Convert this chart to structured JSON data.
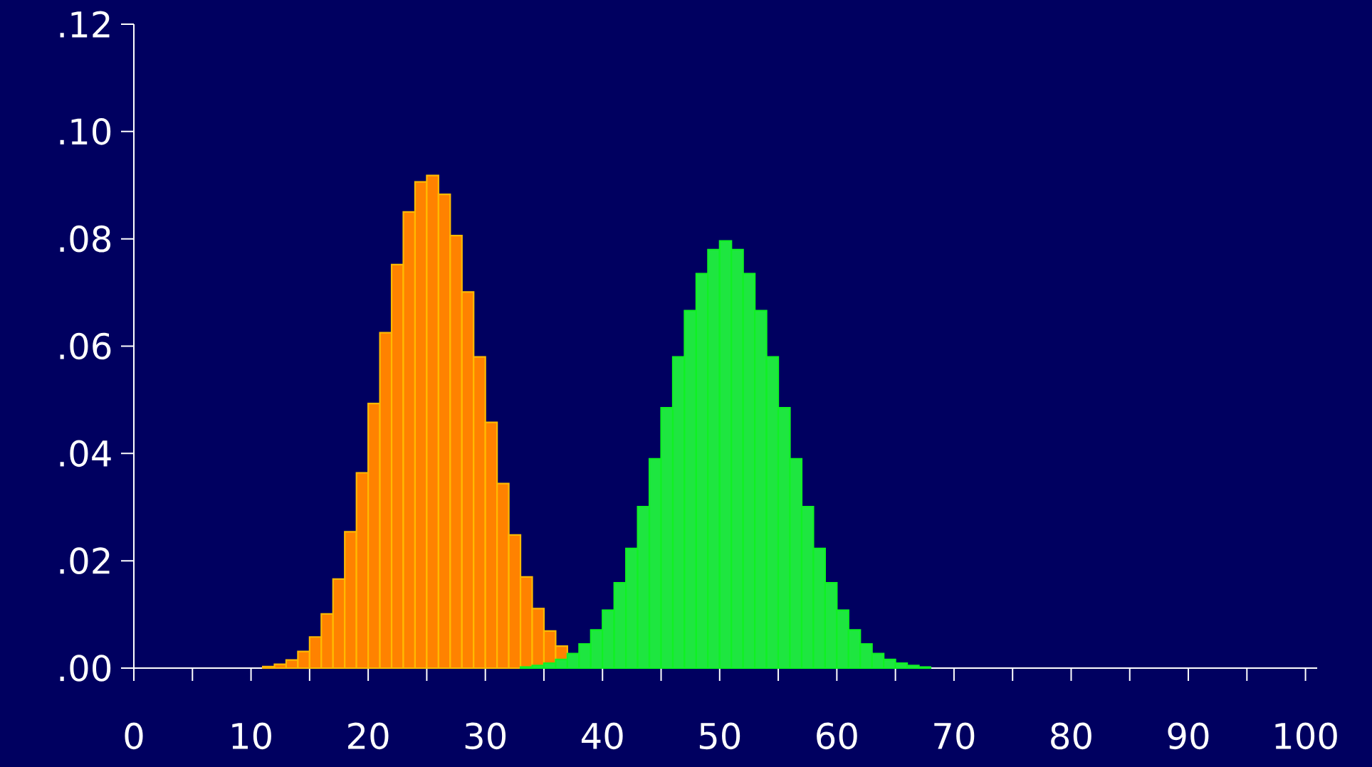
{
  "chart_data": {
    "type": "histogram",
    "bins": [
      11,
      12,
      13,
      14,
      15,
      16,
      17,
      18,
      19,
      20,
      21,
      22,
      23,
      24,
      25,
      26,
      27,
      28,
      29,
      30,
      31,
      32,
      33,
      34,
      35,
      36,
      37,
      38,
      39,
      40,
      41,
      42,
      43,
      44,
      45,
      46,
      47,
      48,
      49,
      50,
      51,
      52,
      53,
      54,
      55,
      56,
      57,
      58,
      59,
      60,
      61,
      62,
      63,
      64,
      65,
      66,
      67,
      68
    ],
    "series": [
      {
        "color": "#ff8200",
        "values": [
          0.0003,
          0.0007,
          0.0015,
          0.0031,
          0.0058,
          0.0101,
          0.0166,
          0.0254,
          0.0364,
          0.0493,
          0.0625,
          0.0752,
          0.085,
          0.0906,
          0.0918,
          0.0883,
          0.0806,
          0.0701,
          0.058,
          0.0458,
          0.0344,
          0.0248,
          0.017,
          0.0111,
          0.0069,
          0.0041,
          null,
          null,
          null,
          null,
          null,
          null,
          null,
          null,
          null,
          null,
          null,
          null,
          null,
          null,
          null,
          null,
          null,
          null,
          null,
          null,
          null,
          null,
          null,
          null,
          null,
          null,
          null,
          null,
          null,
          null,
          null
        ]
      },
      {
        "color": "#1ee640",
        "values": [
          null,
          null,
          null,
          null,
          null,
          null,
          null,
          null,
          null,
          null,
          null,
          null,
          null,
          null,
          null,
          null,
          null,
          null,
          null,
          null,
          null,
          null,
          0.0002,
          0.0005,
          0.0009,
          0.0016,
          0.0027,
          0.0045,
          0.0071,
          0.0108,
          0.0159,
          0.0223,
          0.0301,
          0.039,
          0.0485,
          0.058,
          0.0666,
          0.0735,
          0.078,
          0.0796,
          0.078,
          0.0735,
          0.0666,
          0.058,
          0.0485,
          0.039,
          0.0301,
          0.0223,
          0.0159,
          0.0108,
          0.0071,
          0.0045,
          0.0027,
          0.0016,
          0.0009,
          0.0005,
          0.0002
        ]
      }
    ],
    "xlim": [
      0,
      101
    ],
    "ylim": [
      0,
      0.12
    ],
    "xticks": [
      0,
      10,
      20,
      30,
      40,
      50,
      60,
      70,
      80,
      90,
      100
    ],
    "yticks": [
      {
        "value": 0,
        "label": ".00"
      },
      {
        "value": 0.02,
        "label": ".02"
      },
      {
        "value": 0.04,
        "label": ".04"
      },
      {
        "value": 0.06,
        "label": ".06"
      },
      {
        "value": 0.08,
        "label": ".08"
      },
      {
        "value": 0.1,
        "label": ".10"
      },
      {
        "value": 0.12,
        "label": ".12"
      }
    ]
  }
}
